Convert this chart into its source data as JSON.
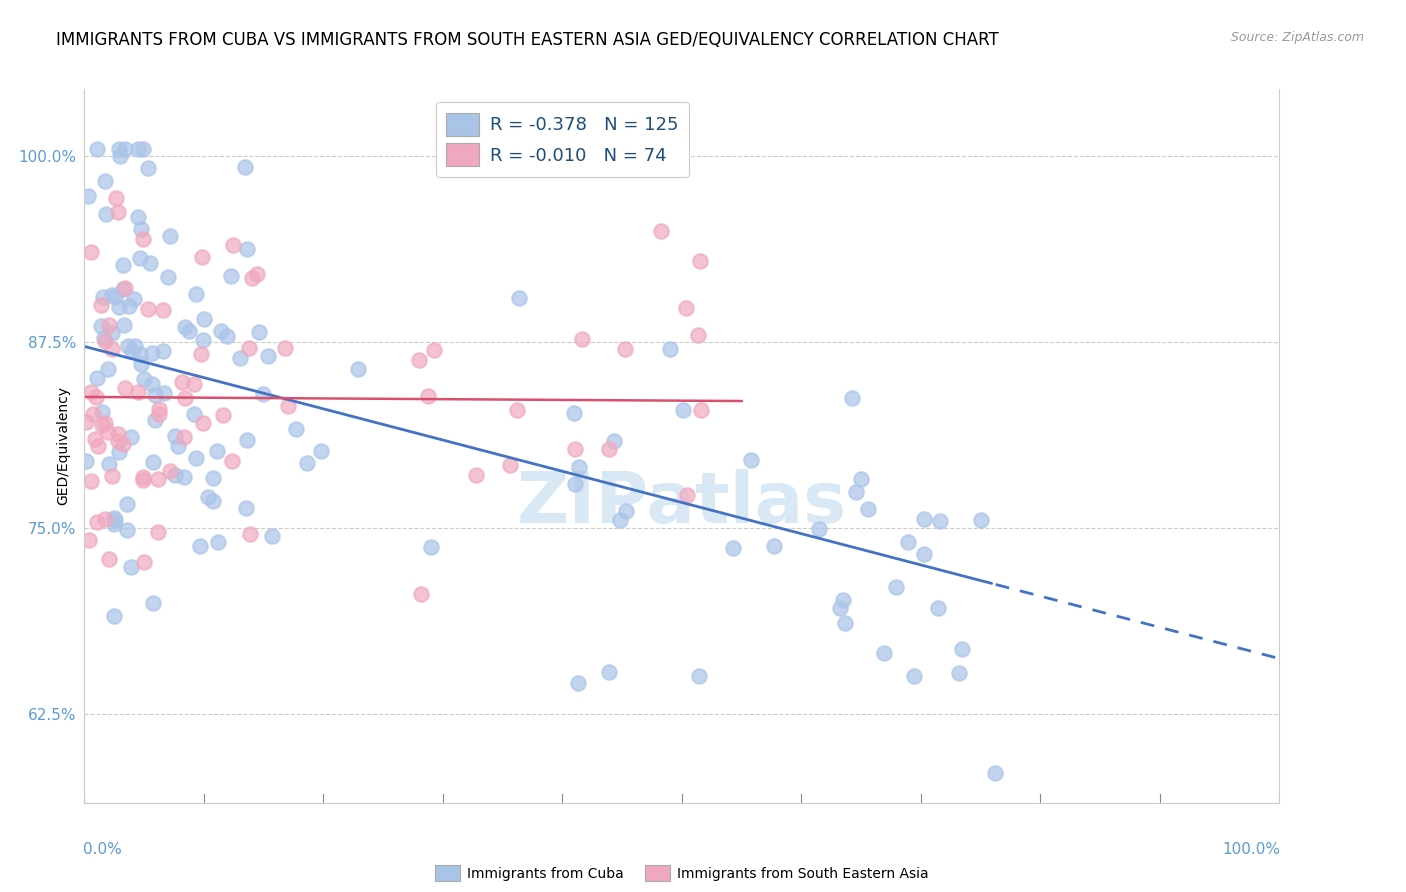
{
  "title": "IMMIGRANTS FROM CUBA VS IMMIGRANTS FROM SOUTH EASTERN ASIA GED/EQUIVALENCY CORRELATION CHART",
  "source_text": "Source: ZipAtlas.com",
  "ylabel": "GED/Equivalency",
  "ytick_labels": [
    "62.5%",
    "75.0%",
    "87.5%",
    "100.0%"
  ],
  "ytick_values": [
    0.625,
    0.75,
    0.875,
    1.0
  ],
  "xlim": [
    0.0,
    1.0
  ],
  "ylim": [
    0.565,
    1.045
  ],
  "legend_R1": "-0.378",
  "legend_N1": "125",
  "legend_R2": "-0.010",
  "legend_N2": "74",
  "color_cuba": "#aac4e8",
  "color_sea": "#f0a8be",
  "color_line_cuba": "#4472c4",
  "color_line_sea": "#d94f6e",
  "background_color": "#ffffff",
  "title_fontsize": 12,
  "source_fontsize": 9,
  "axis_label_fontsize": 10,
  "tick_fontsize": 11,
  "legend_fontsize": 13,
  "watermark_text": "ZIPatlas",
  "watermark_color": "#d8e8f5",
  "line_solid_end_cuba": 0.76,
  "line_end_cuba": 1.0,
  "line_start_cuba_y": 0.872,
  "line_slope_cuba": -0.21,
  "line_sea_y": 0.838,
  "line_sea_slope": -0.005,
  "line_sea_end": 0.55
}
